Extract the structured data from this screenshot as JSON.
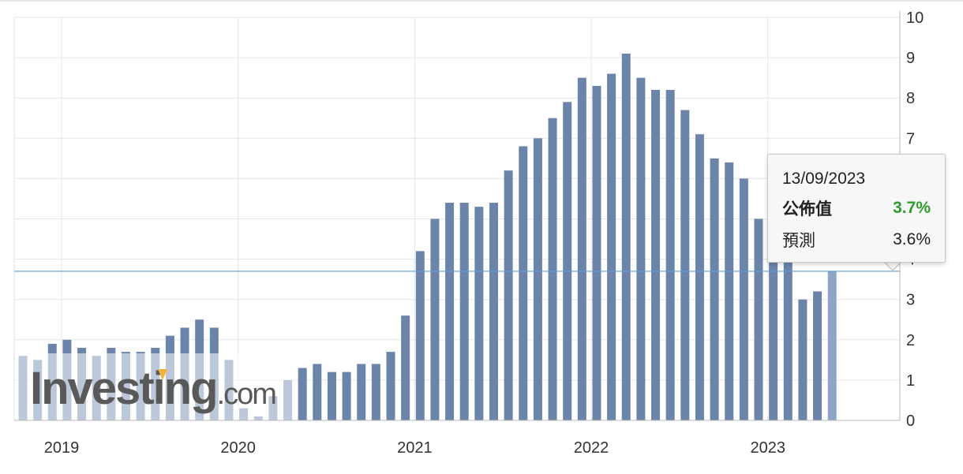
{
  "chart_data": {
    "type": "bar",
    "x": [
      "2019-01",
      "2019-02",
      "2019-03",
      "2019-04",
      "2019-05",
      "2019-06",
      "2019-07",
      "2019-08",
      "2019-09",
      "2019-10",
      "2019-11",
      "2019-12",
      "2020-01",
      "2020-02",
      "2020-03",
      "2020-04",
      "2020-05",
      "2020-06",
      "2020-07",
      "2020-08",
      "2020-09",
      "2020-10",
      "2020-11",
      "2020-12",
      "2021-01",
      "2021-02",
      "2021-03",
      "2021-04",
      "2021-05",
      "2021-06",
      "2021-07",
      "2021-08",
      "2021-09",
      "2021-10",
      "2021-11",
      "2021-12",
      "2022-01",
      "2022-02",
      "2022-03",
      "2022-04",
      "2022-05",
      "2022-06",
      "2022-07",
      "2022-08",
      "2022-09",
      "2022-10",
      "2022-11",
      "2022-12",
      "2023-01",
      "2023-02",
      "2023-03",
      "2023-04",
      "2023-05",
      "2023-06",
      "2023-07",
      "2023-08"
    ],
    "values": [
      1.6,
      1.5,
      1.9,
      2.0,
      1.8,
      1.6,
      1.8,
      1.7,
      1.7,
      1.8,
      2.1,
      2.3,
      2.5,
      2.3,
      1.5,
      0.3,
      0.1,
      0.6,
      1.0,
      1.3,
      1.4,
      1.2,
      1.2,
      1.4,
      1.4,
      1.7,
      2.6,
      4.2,
      5.0,
      5.4,
      5.4,
      5.3,
      5.4,
      6.2,
      6.8,
      7.0,
      7.5,
      7.9,
      8.5,
      8.3,
      8.6,
      9.1,
      8.5,
      8.2,
      8.2,
      7.7,
      7.1,
      6.5,
      6.4,
      6.0,
      5.0,
      4.9,
      4.0,
      3.0,
      3.2,
      3.7
    ],
    "highlight_index": 55,
    "reference_value": 3.7,
    "ylim": [
      0,
      10
    ],
    "y_ticks": [
      "0",
      "1",
      "2",
      "3",
      "4",
      "5",
      "6",
      "7",
      "8",
      "9",
      "10"
    ],
    "x_tick_labels": [
      "2019",
      "2020",
      "2021",
      "2022",
      "2023"
    ],
    "title": "",
    "xlabel": "",
    "ylabel": "",
    "grid": true,
    "watermark": "Investing.com",
    "colors": {
      "bar": "#6c84aa",
      "bar_highlight": "#8fa4c6",
      "reference_line": "#5a9fd6",
      "grid": "#e6e6e6",
      "watermark_text": "#595959",
      "watermark_accent": "#f2b33a",
      "actual_value": "#2f9b2f"
    }
  },
  "tooltip": {
    "date": "13/09/2023",
    "actual_label": "公佈值",
    "actual_value": "3.7%",
    "forecast_label": "預測",
    "forecast_value": "3.6%"
  }
}
